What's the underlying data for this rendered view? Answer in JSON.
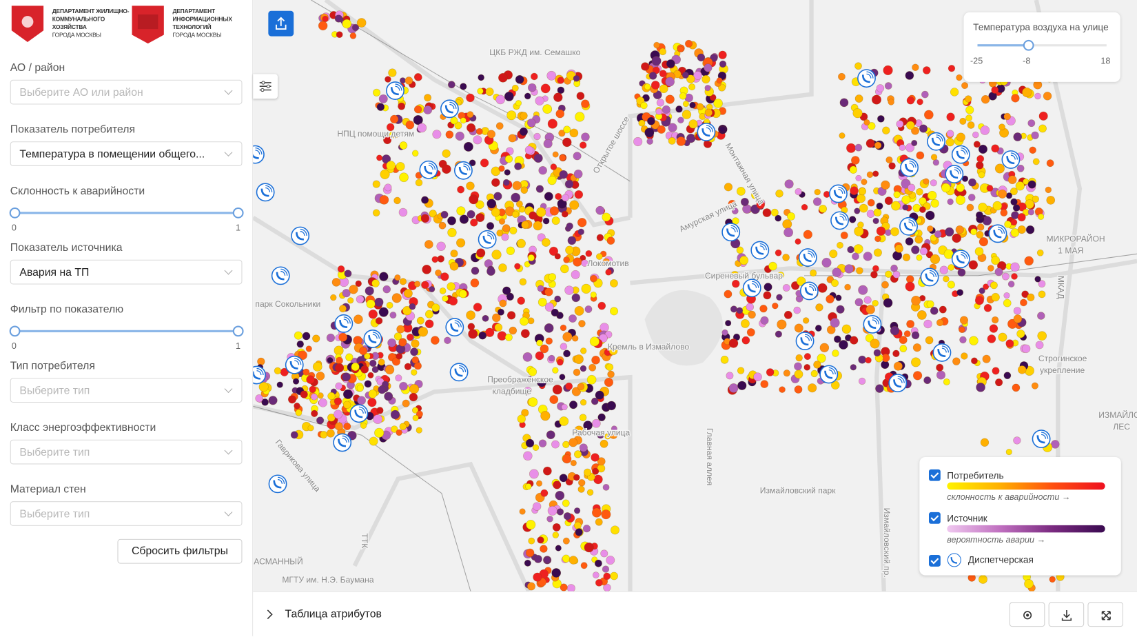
{
  "header": {
    "logos": [
      {
        "lines": [
          "ДЕПАРТАМЕНТ ЖИЛИЩНО-",
          "КОММУНАЛЬНОГО",
          "ХОЗЯЙСТВА",
          "ГОРОДА МОСКВЫ"
        ]
      },
      {
        "lines": [
          "ДЕПАРТАМЕНТ",
          "ИНФОРМАЦИОННЫХ",
          "ТЕХНОЛОГИЙ",
          "ГОРОДА МОСКВЫ"
        ]
      }
    ]
  },
  "filters": {
    "district": {
      "label": "АО / район",
      "placeholder": "Выберите АО или район"
    },
    "consumer_indicator": {
      "label": "Показатель потребителя",
      "value": "Температура в помещении общего..."
    },
    "accident_tendency": {
      "label": "Склонность к аварийности",
      "min": 0,
      "max": 1
    },
    "source_indicator": {
      "label": "Показатель источника",
      "value": "Авария на ТП"
    },
    "indicator_filter": {
      "label": "Фильтр по показателю",
      "min": 0,
      "max": 1
    },
    "consumer_type": {
      "label": "Тип потребителя",
      "placeholder": "Выберите тип"
    },
    "energy_class": {
      "label": "Класс энергоэффективности",
      "placeholder": "Выберите тип"
    },
    "wall_material": {
      "label": "Материал стен",
      "placeholder": "Выберите тип"
    },
    "reset": "Сбросить фильтры"
  },
  "temperature": {
    "title": "Температура воздуха на улице",
    "min": -25,
    "value": -8,
    "max": 18
  },
  "legend": {
    "consumer": {
      "label": "Потребитель",
      "sublabel": "склонность к аварийности →"
    },
    "source": {
      "label": "Источник",
      "sublabel": "вероятность аварии →"
    },
    "dispatcher": {
      "label": "Диспетчерская"
    }
  },
  "attribute_table": "Таблица атрибутов",
  "map_labels": [
    "ЦКБ РЖД им. Семашко",
    "НПЦ помощи детям",
    "Локомотив",
    "парк Сокольники",
    "Преображенское",
    "кладбище",
    "Кремль в Измайлово",
    "Измайловский парк",
    "Главная аллея",
    "Строгинское",
    "укрепление",
    "ИЗМАЙЛОВСКИЙ",
    "ЛЕС",
    "МИКРОРАЙОН",
    "1 МАЯ",
    "МКАД",
    "Монтажная улица",
    "Открытое шоссе",
    "Гаврикова улица",
    "ТТК",
    "АСМАННЫЙ",
    "МГТУ им. Н.Э. Баумана",
    "Амурская улица",
    "Сиреневый бульвар",
    "Измайловский пр.",
    "Рабочая улица"
  ]
}
